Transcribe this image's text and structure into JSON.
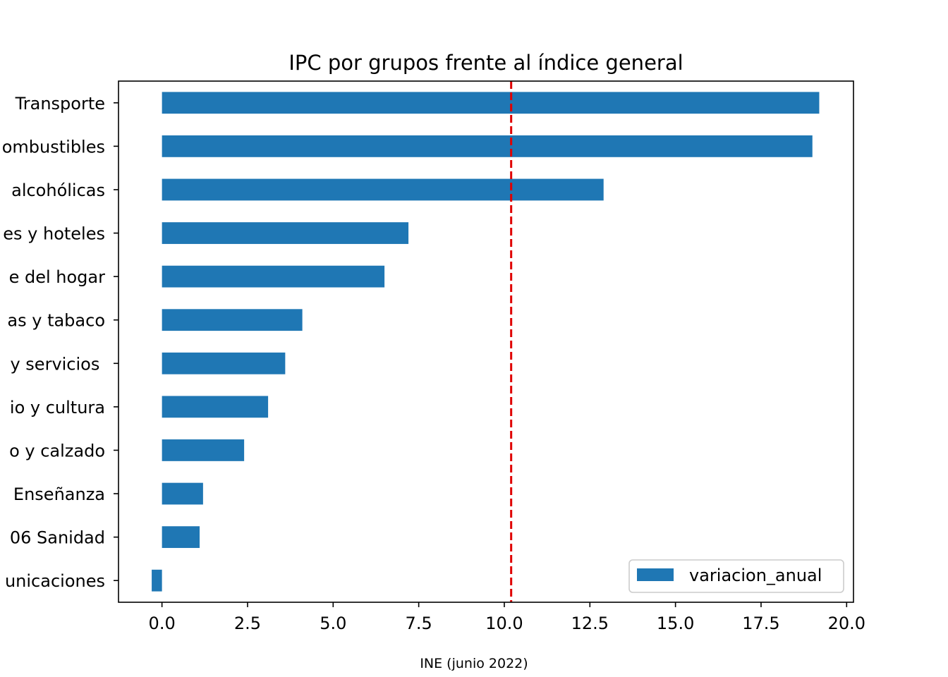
{
  "chart_data": {
    "type": "bar",
    "orientation": "horizontal",
    "title": "IPC por grupos frente al índice general",
    "xlabel": "",
    "ylabel": "",
    "categories": [
      "Transporte",
      "ombustibles",
      "alcohólicas",
      "es y hoteles",
      "e del hogar",
      "as y tabaco",
      "y servicios ",
      "io y cultura",
      "o y calzado",
      "Enseñanza",
      "06 Sanidad",
      "unicaciones"
    ],
    "series": [
      {
        "name": "variacion_anual",
        "color": "#1f77b4",
        "values": [
          19.2,
          19.0,
          12.9,
          7.2,
          6.5,
          4.1,
          3.6,
          3.1,
          2.4,
          1.2,
          1.1,
          -0.3
        ]
      }
    ],
    "reference_line": {
      "value": 10.2,
      "color": "#e00000",
      "style": "dashed"
    },
    "xlim": [
      -1.27,
      20.2
    ],
    "xticks": [
      "0.0",
      "2.5",
      "5.0",
      "7.5",
      "10.0",
      "12.5",
      "15.0",
      "17.5",
      "20.0"
    ],
    "grid": false,
    "legend_position": "lower-right"
  },
  "source_note": "INE (junio 2022)"
}
